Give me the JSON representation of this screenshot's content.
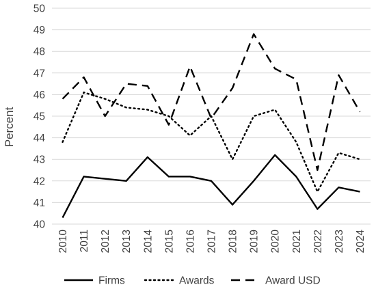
{
  "chart_data": {
    "type": "line",
    "title": "",
    "xlabel": "",
    "ylabel": "Percent",
    "ylim": [
      40,
      50
    ],
    "yticks": [
      40,
      41,
      42,
      43,
      44,
      45,
      46,
      47,
      48,
      49,
      50
    ],
    "grid": "horizontal",
    "legend_position": "bottom",
    "categories": [
      "2010",
      "2011",
      "2012",
      "2013",
      "2014",
      "2015",
      "2016",
      "2017",
      "2018",
      "2019",
      "2020",
      "2021",
      "2022",
      "2023",
      "2024"
    ],
    "series": [
      {
        "name": "Firms",
        "style": "solid",
        "color": "#000000",
        "values": [
          40.3,
          42.2,
          42.1,
          42.0,
          43.1,
          42.2,
          42.2,
          42.0,
          40.9,
          42.0,
          43.2,
          42.2,
          40.7,
          41.7,
          41.5
        ]
      },
      {
        "name": "Awards",
        "style": "dotted",
        "color": "#000000",
        "values": [
          43.8,
          46.1,
          45.8,
          45.4,
          45.3,
          45.0,
          44.1,
          45.0,
          43.0,
          45.0,
          45.3,
          43.8,
          41.5,
          43.3,
          43.0
        ]
      },
      {
        "name": "Award USD",
        "style": "dashed",
        "color": "#000000",
        "values": [
          45.8,
          46.8,
          45.0,
          46.5,
          46.4,
          44.6,
          47.3,
          44.9,
          46.3,
          48.8,
          47.2,
          46.7,
          42.5,
          46.9,
          45.2
        ]
      }
    ]
  }
}
